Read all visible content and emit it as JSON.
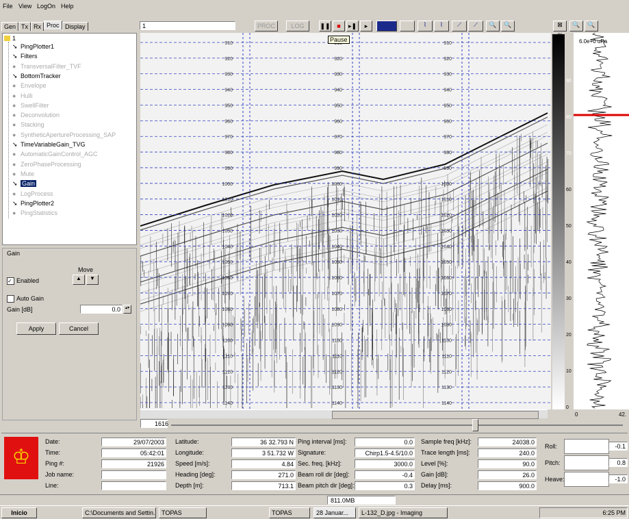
{
  "menu": [
    "File",
    "View",
    "LogOn",
    "Help"
  ],
  "tabs": [
    "Gen",
    "Tx",
    "Rx",
    "Proc",
    "Display"
  ],
  "tree": {
    "root": "1",
    "items": [
      {
        "label": "PingPlotter1",
        "active": true
      },
      {
        "label": "Filters",
        "active": true
      },
      {
        "label": "TransversalFilter_TVF",
        "active": false
      },
      {
        "label": "BottomTracker",
        "active": true
      },
      {
        "label": "Envelope",
        "active": false
      },
      {
        "label": "Hulli",
        "active": false
      },
      {
        "label": "SwellFilter",
        "active": false
      },
      {
        "label": "Deconvolution",
        "active": false
      },
      {
        "label": "Stacking",
        "active": false
      },
      {
        "label": "SyntheticApertureProcessing_SAP",
        "active": false
      },
      {
        "label": "TimeVariableGain_TVG",
        "active": true
      },
      {
        "label": "AutomaticGainControl_AGC",
        "active": false
      },
      {
        "label": "ZeroPhaseProcessing",
        "active": false
      },
      {
        "label": "Mute",
        "active": false
      },
      {
        "label": "Gain",
        "active": true,
        "selected": true
      },
      {
        "label": "LogProcess",
        "active": false
      },
      {
        "label": "PingPlotter2",
        "active": true
      },
      {
        "label": "PingStatistics",
        "active": false
      }
    ]
  },
  "gain_panel": {
    "title": "Gain",
    "move": "Move",
    "enabled": "Enabled",
    "auto_gain": "Auto Gain",
    "gain_label": "Gain [dB]",
    "gain_value": "0.0",
    "apply": "Apply",
    "cancel": "Cancel"
  },
  "toolbar": {
    "page": "1",
    "proc": "PROC",
    "log": "LOG",
    "tooltip": "Pause"
  },
  "display": {
    "depths": [
      910,
      920,
      930,
      940,
      950,
      960,
      970,
      980,
      990,
      1000,
      1010,
      1020,
      1030,
      1040,
      1050,
      1060,
      1070,
      1080,
      1090,
      1100,
      1110,
      1120,
      1130,
      1140
    ],
    "scale_unit": "%",
    "scale": [
      90,
      80,
      70,
      60,
      50,
      40,
      30,
      20,
      10,
      0
    ],
    "position": "1616"
  },
  "trace": {
    "label": "6.0e+0 uPa",
    "min": "0",
    "max": "42."
  },
  "info": {
    "groups": [
      [
        {
          "label": "Date:",
          "value": "29/07/2003"
        },
        {
          "label": "Time:",
          "value": "05:42:01"
        },
        {
          "label": "Ping #:",
          "value": "21926"
        },
        {
          "label": "Job name:"
        },
        {
          "label": "Line:"
        }
      ],
      [
        {
          "label": "Latitude:",
          "value": "36 32.793 N"
        },
        {
          "label": "Longitude:",
          "value": "3 51.732 W"
        },
        {
          "label": "Speed [m/s]:",
          "value": "4.84"
        },
        {
          "label": "Heading [deg]:",
          "value": "271.0"
        },
        {
          "label": "Depth [m]:",
          "value": "713.1"
        }
      ],
      [
        {
          "label": "Ping interval [ms]:",
          "value": "0.0"
        },
        {
          "label": "Signature:",
          "value": "Chirp1.5-4.5/10.0"
        },
        {
          "label": "Sec. freq. [kHz]:",
          "value": "3000.0"
        },
        {
          "label": "Beam roll dir [deg]:",
          "value": "-0.4"
        },
        {
          "label": "Beam pitch dir [deg]:",
          "value": "0.3"
        }
      ],
      [
        {
          "label": "Sample freq [kHz]:",
          "value": "24038.0"
        },
        {
          "label": "Trace length [ms]:",
          "value": "240.0"
        },
        {
          "label": "Level [%]:",
          "value": "90.0"
        },
        {
          "label": "Gain [dB]:",
          "value": "26.0"
        },
        {
          "label": "Delay [ms]:",
          "value": "900.0"
        }
      ]
    ],
    "motion": [
      {
        "label": "Roll:",
        "value": "-0.1"
      },
      {
        "label": "Pitch:",
        "value": "0.8"
      },
      {
        "label": "Heave:",
        "value": "-1.0"
      }
    ]
  },
  "status": "811.0MB",
  "taskbar": {
    "start": "Inicio",
    "items": [
      "C:\\Documents and Settin...",
      "TOPAS",
      "TOPAS",
      "28 Januar...",
      "L-132_D.jpg - Imaging"
    ],
    "clock": "6:25 PM"
  }
}
